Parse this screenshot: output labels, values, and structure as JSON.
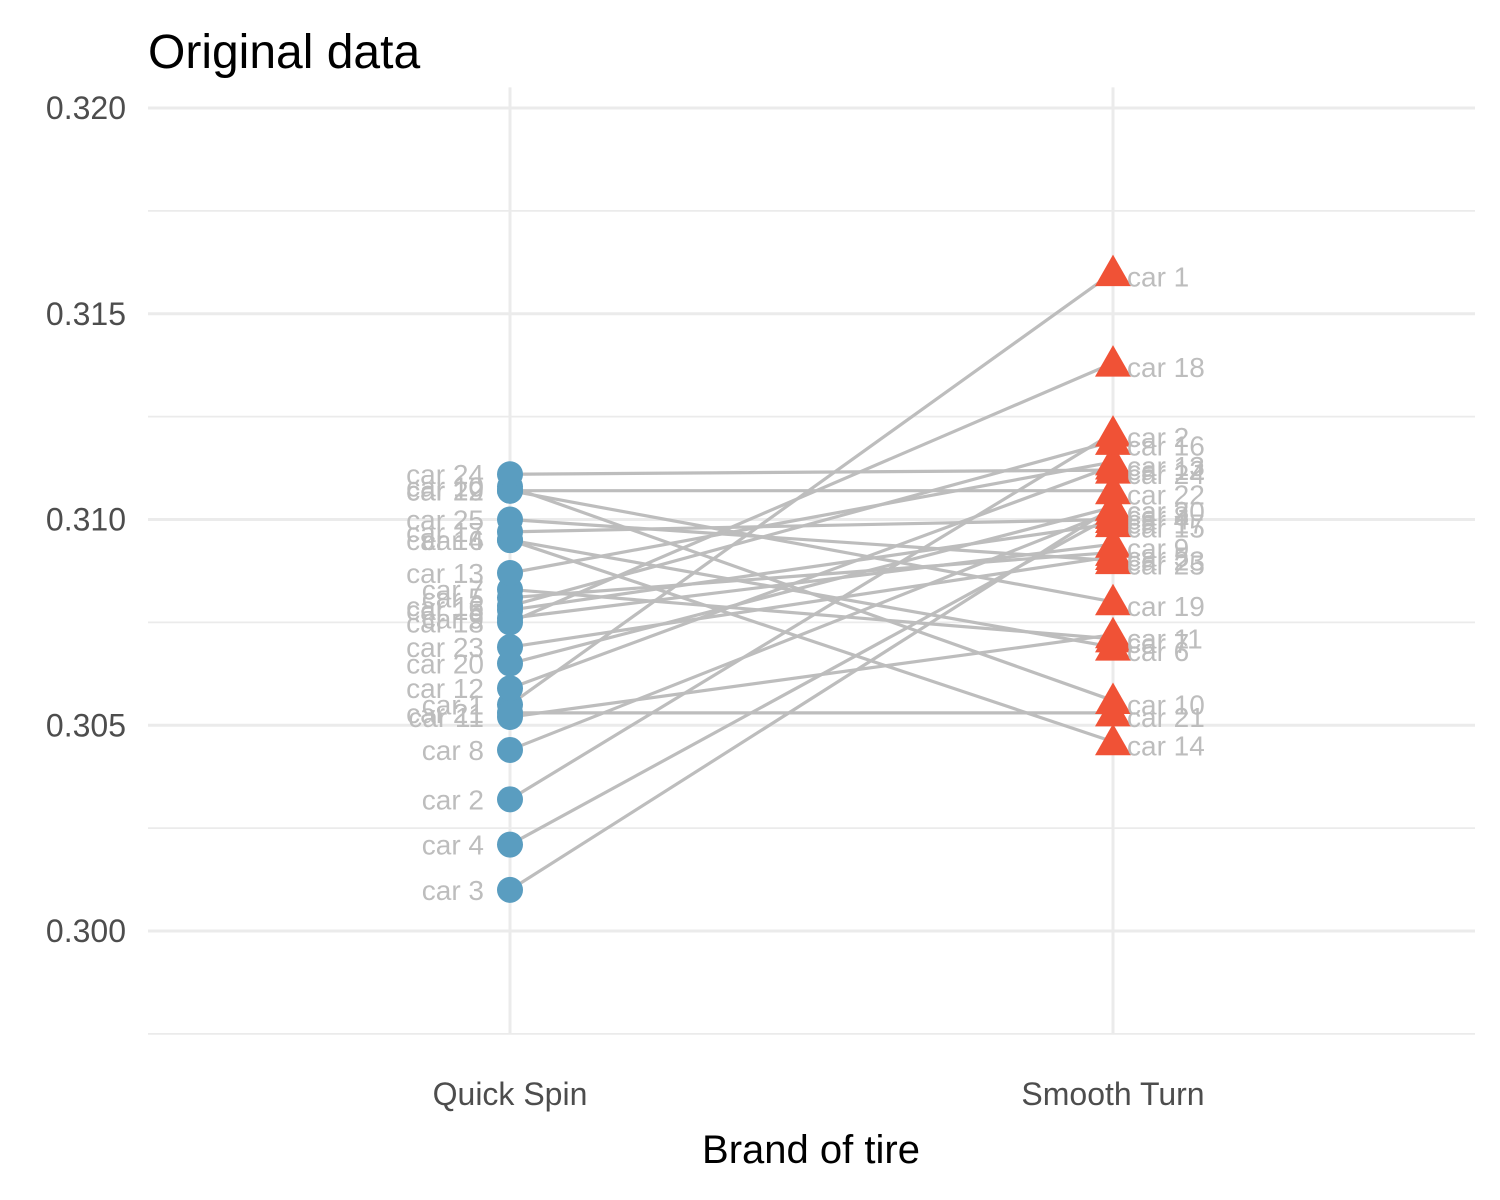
{
  "chart_data": {
    "type": "line",
    "title": "Original data",
    "xlabel": "Brand of tire",
    "ylabel": "",
    "categories": [
      "Quick Spin",
      "Smooth Turn"
    ],
    "ylim": [
      0.2975,
      0.3205
    ],
    "yticks": [
      "0.300",
      "0.305",
      "0.310",
      "0.315",
      "0.320"
    ],
    "ytick_values": [
      0.3,
      0.305,
      0.31,
      0.315,
      0.32
    ],
    "grid": true,
    "colors": {
      "Quick Spin": "#5a9dc0",
      "Smooth Turn": "#f05236",
      "connector": "#bdbdbd",
      "label": "#bdbdbd",
      "grid": "#ebebeb"
    },
    "markers": {
      "Quick Spin": "circle",
      "Smooth Turn": "triangle"
    },
    "pairs": [
      {
        "car": "car 1",
        "quick": 0.3055,
        "smooth": 0.316
      },
      {
        "car": "car 2",
        "quick": 0.3032,
        "smooth": 0.3121
      },
      {
        "car": "car 3",
        "quick": 0.301,
        "smooth": 0.3103
      },
      {
        "car": "car 4",
        "quick": 0.3021,
        "smooth": 0.3101
      },
      {
        "car": "car 5",
        "quick": 0.3081,
        "smooth": 0.3092
      },
      {
        "car": "car 6",
        "quick": 0.3095,
        "smooth": 0.3069
      },
      {
        "car": "car 7",
        "quick": 0.3083,
        "smooth": 0.3071
      },
      {
        "car": "car 8",
        "quick": 0.3044,
        "smooth": 0.3102
      },
      {
        "car": "car 9",
        "quick": 0.3076,
        "smooth": 0.3094
      },
      {
        "car": "car 10",
        "quick": 0.3108,
        "smooth": 0.3056
      },
      {
        "car": "car 11",
        "quick": 0.3052,
        "smooth": 0.3072
      },
      {
        "car": "car 12",
        "quick": 0.3059,
        "smooth": 0.3113
      },
      {
        "car": "car 13",
        "quick": 0.3087,
        "smooth": 0.3114
      },
      {
        "car": "car 14",
        "quick": 0.3095,
        "smooth": 0.3046
      },
      {
        "car": "car 15",
        "quick": 0.3078,
        "smooth": 0.3099
      },
      {
        "car": "car 16",
        "quick": 0.3079,
        "smooth": 0.3119
      },
      {
        "car": "car 17",
        "quick": 0.3097,
        "smooth": 0.31
      },
      {
        "car": "car 18",
        "quick": 0.3075,
        "smooth": 0.3138
      },
      {
        "car": "car 19",
        "quick": 0.3107,
        "smooth": 0.308
      },
      {
        "car": "car 20",
        "quick": 0.3065,
        "smooth": 0.3103
      },
      {
        "car": "car 21",
        "quick": 0.3053,
        "smooth": 0.3053
      },
      {
        "car": "car 22",
        "quick": 0.3107,
        "smooth": 0.3107
      },
      {
        "car": "car 23",
        "quick": 0.3069,
        "smooth": 0.3091
      },
      {
        "car": "car 24",
        "quick": 0.3111,
        "smooth": 0.3112
      },
      {
        "car": "car 25",
        "quick": 0.31,
        "smooth": 0.309
      }
    ]
  }
}
